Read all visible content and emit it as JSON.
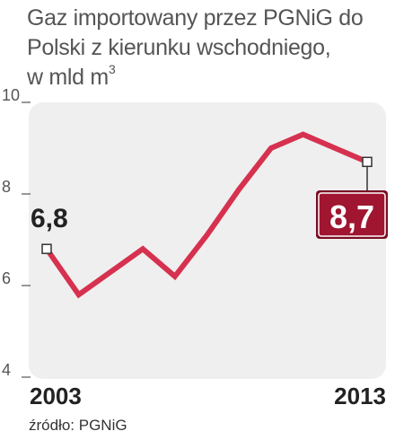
{
  "header": {
    "title_line1": "Gaz importowany przez PGNiG do",
    "title_line2": "Polski z kierunku wschodniego,",
    "title_line3": "w mld m",
    "title_sup": "3"
  },
  "chart_data": {
    "type": "line",
    "title": "Gaz importowany przez PGNiG do Polski z kierunku wschodniego, w mld m3",
    "xlabel": "",
    "ylabel": "",
    "ylim": [
      4,
      10
    ],
    "yticks": [
      "4",
      "6",
      "8",
      "10"
    ],
    "x_labels": [
      "2003",
      "2013"
    ],
    "x": [
      2003,
      2004,
      2005,
      2006,
      2007,
      2008,
      2009,
      2010,
      2011,
      2012,
      2013
    ],
    "series": [
      {
        "values": [
          6.8,
          5.8,
          6.3,
          6.8,
          6.2,
          7.1,
          8.1,
          9.0,
          9.3,
          9.0,
          8.7
        ]
      }
    ],
    "annotations": [
      {
        "x": 2003,
        "label": "6,8"
      },
      {
        "x": 2013,
        "label": "8,7"
      }
    ],
    "grid": false,
    "colors": {
      "line": "#d6314f",
      "panel": "#efefef",
      "badge": "#a01530",
      "badge_border": "#7a0d22"
    }
  },
  "footer": {
    "source": "źródło: PGNiG"
  }
}
